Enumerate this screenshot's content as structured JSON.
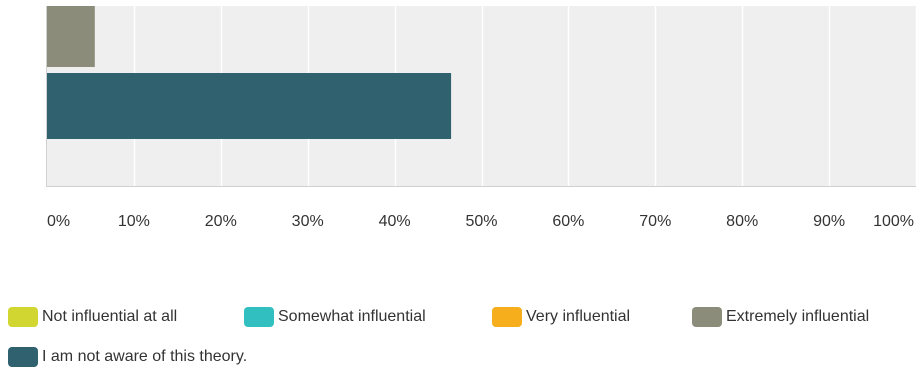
{
  "chart_data": {
    "type": "bar",
    "orientation": "horizontal",
    "stacked": true,
    "xlim": [
      0,
      100
    ],
    "ticks": [
      "0%",
      "10%",
      "20%",
      "30%",
      "40%",
      "50%",
      "60%",
      "70%",
      "80%",
      "90%",
      "100%"
    ],
    "grid": true,
    "legend_placement": "bottom",
    "series": [
      {
        "name": "Not influential at all",
        "color": "#d2d630"
      },
      {
        "name": "Somewhat influential",
        "color": "#31bfbf"
      },
      {
        "name": "Very influential",
        "color": "#f6ae1c"
      },
      {
        "name": "Extremely influential",
        "color": "#8b8c7a"
      },
      {
        "name": "I am not aware of this theory.",
        "color": "#30616f"
      }
    ],
    "bars": [
      {
        "series": "Extremely influential",
        "value": 5.5
      },
      {
        "series": "I am not aware of this theory.",
        "value": 46.5
      }
    ]
  }
}
